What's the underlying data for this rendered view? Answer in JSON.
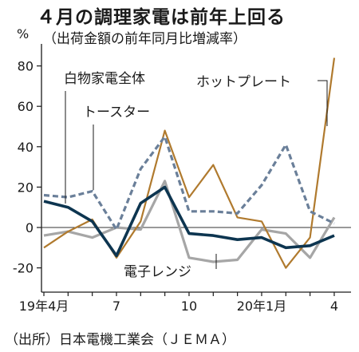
{
  "header": {
    "title": "４月の調理家電は前年上回る",
    "subtitle": "（出荷金額の前年同月比増減率）"
  },
  "footer": {
    "source": "（出所）日本電機工業会（ＪＥＭＡ）"
  },
  "chart_data": {
    "type": "line",
    "title": "４月の調理家電は前年上回る",
    "subtitle": "（出荷金額の前年同月比増減率）",
    "yunit": "%",
    "ylim": [
      -30,
      95
    ],
    "yticks": [
      80,
      60,
      40,
      20,
      0,
      -20
    ],
    "ytick_labels": [
      "80",
      "60",
      "40",
      "20",
      "0",
      "-20"
    ],
    "grid": false,
    "x_ticks": [
      {
        "index": 0,
        "label": "19年4月"
      },
      {
        "index": 3,
        "label": "7"
      },
      {
        "index": 6,
        "label": "10"
      },
      {
        "index": 9,
        "label": "20年1月"
      },
      {
        "index": 12,
        "label": "4"
      }
    ],
    "colors": {
      "axis": "#1a1a1a",
      "zero_line": "#333333",
      "hotplate": "#b07a2e",
      "toaster": "#6a7f99",
      "white_goods": "#0d3550",
      "range": "#a6a6a6"
    },
    "series": [
      {
        "name": "白物家電全体",
        "key": "white_goods",
        "values": [
          13,
          10,
          3,
          -14,
          12,
          20,
          -3,
          -4,
          -6,
          -5,
          -10,
          -9,
          -4
        ]
      },
      {
        "name": "トースター",
        "key": "toaster",
        "values": [
          16,
          15,
          18,
          -1,
          29,
          45,
          8,
          8,
          7,
          21,
          41,
          8,
          2
        ]
      },
      {
        "name": "ホットプレート",
        "key": "hotplate",
        "values": [
          -10,
          -2,
          4,
          -15,
          3,
          48,
          15,
          31,
          5,
          3,
          -20,
          -5,
          84
        ]
      },
      {
        "name": "電子レンジ",
        "key": "range",
        "values": [
          -4,
          -2,
          -5,
          0,
          -1,
          23,
          -15,
          -17,
          -16,
          -1,
          -3,
          -15,
          5
        ]
      }
    ]
  }
}
